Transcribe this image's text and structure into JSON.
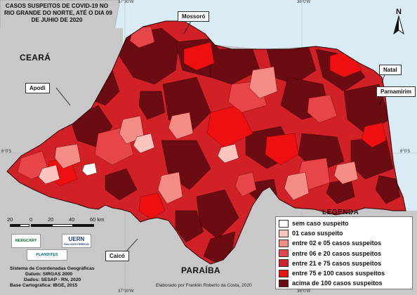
{
  "title": {
    "line1": "CASOS SUSPEITOS DE COVID-19 NO",
    "line2": "RIO GRANDE DO NORTE, ATÉ O DIA 09",
    "line3": "DE JUHIO DE 2020"
  },
  "neighbors": {
    "ceara": "CEARÁ",
    "paraiba": "PARAÍBA"
  },
  "cities": {
    "mossoro": "Mossoró",
    "apodi": "Apodi",
    "natal": "Natal",
    "parnamirim": "Parnamirim",
    "caico": "Caicó"
  },
  "coordinates": {
    "lon_west": "37°30'W",
    "lon_east": "36°0'W",
    "lat": "6°0'S"
  },
  "scale": {
    "ticks": [
      "20",
      "0",
      "20",
      "40",
      "60 km"
    ]
  },
  "logos": {
    "left": "NEEGCART",
    "right": "UERN",
    "right_sub": "PAU DOS FERROS",
    "bottom": "PLANDITES"
  },
  "info": {
    "line1": "Sistema de Coordenadas Geográficas",
    "line2": "Datum: SIRGAS 2000",
    "line3": "Dados: SESAP - RN, 2020",
    "line4": "Base Cartográfica: IBGE, 2015"
  },
  "legend": {
    "title": "LEGENDA",
    "items": [
      {
        "label": "sem caso suspeito",
        "color": "#ffffff"
      },
      {
        "label": "01 caso suspeito",
        "color": "#fbc5bd"
      },
      {
        "label": "entre 02 e 05 casos suspeitos",
        "color": "#f48c86"
      },
      {
        "label": "entre 06 e 20 casos suspeitos",
        "color": "#e8454b"
      },
      {
        "label": "entre 21 e 75 casos suspeitos",
        "color": "#d12127"
      },
      {
        "label": "entre 75 e 100 casos suspeitos",
        "color": "#ee1010"
      },
      {
        "label": "acima de 100 casos suspeitos",
        "color": "#6b0b12"
      }
    ]
  },
  "credit": "Elaborado por Franklin Roberto da Costa, 2020",
  "colors": {
    "ocean": "#d9ebf4",
    "land_neighbor": "#c8c8c8",
    "background_frame": "#ffffff"
  }
}
